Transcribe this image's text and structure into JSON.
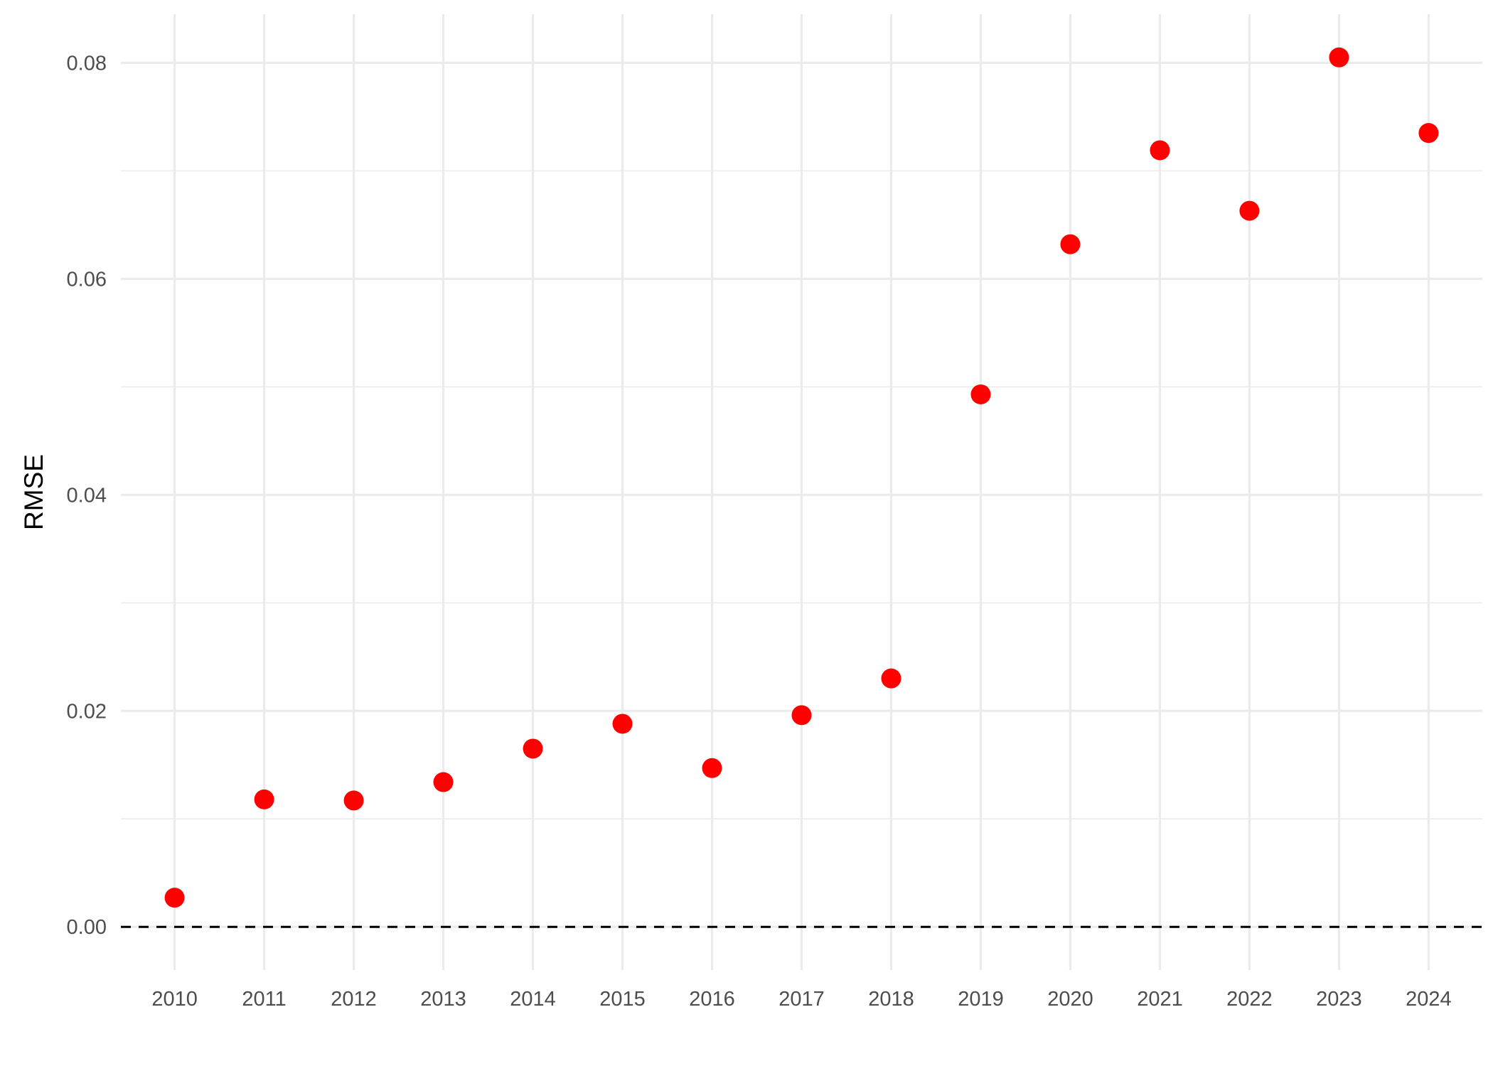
{
  "chart_data": {
    "type": "scatter",
    "title": "",
    "xlabel": "",
    "ylabel": "RMSE",
    "x": [
      2010,
      2011,
      2012,
      2013,
      2014,
      2015,
      2016,
      2017,
      2018,
      2019,
      2020,
      2021,
      2022,
      2023,
      2024
    ],
    "y": [
      0.0027,
      0.0118,
      0.0117,
      0.0134,
      0.0165,
      0.0188,
      0.0147,
      0.0196,
      0.023,
      0.0493,
      0.0632,
      0.0719,
      0.0663,
      0.0805,
      0.0735
    ],
    "xlim": [
      2009.4,
      2024.6
    ],
    "ylim": [
      -0.004,
      0.0845
    ],
    "y_ticks": [
      0.0,
      0.02,
      0.04,
      0.06,
      0.08
    ],
    "y_tick_labels": [
      "0.00",
      "0.02",
      "0.04",
      "0.06",
      "0.08"
    ],
    "x_ticks": [
      2010,
      2011,
      2012,
      2013,
      2014,
      2015,
      2016,
      2017,
      2018,
      2019,
      2020,
      2021,
      2022,
      2023,
      2024
    ],
    "x_tick_labels": [
      "2010",
      "2011",
      "2012",
      "2013",
      "2014",
      "2015",
      "2016",
      "2017",
      "2018",
      "2019",
      "2020",
      "2021",
      "2022",
      "2023",
      "2024"
    ],
    "reference_line": {
      "y": 0,
      "style": "dashed",
      "color": "#000000"
    },
    "point_color": "#ff0000",
    "grid": true,
    "legend": "none"
  }
}
